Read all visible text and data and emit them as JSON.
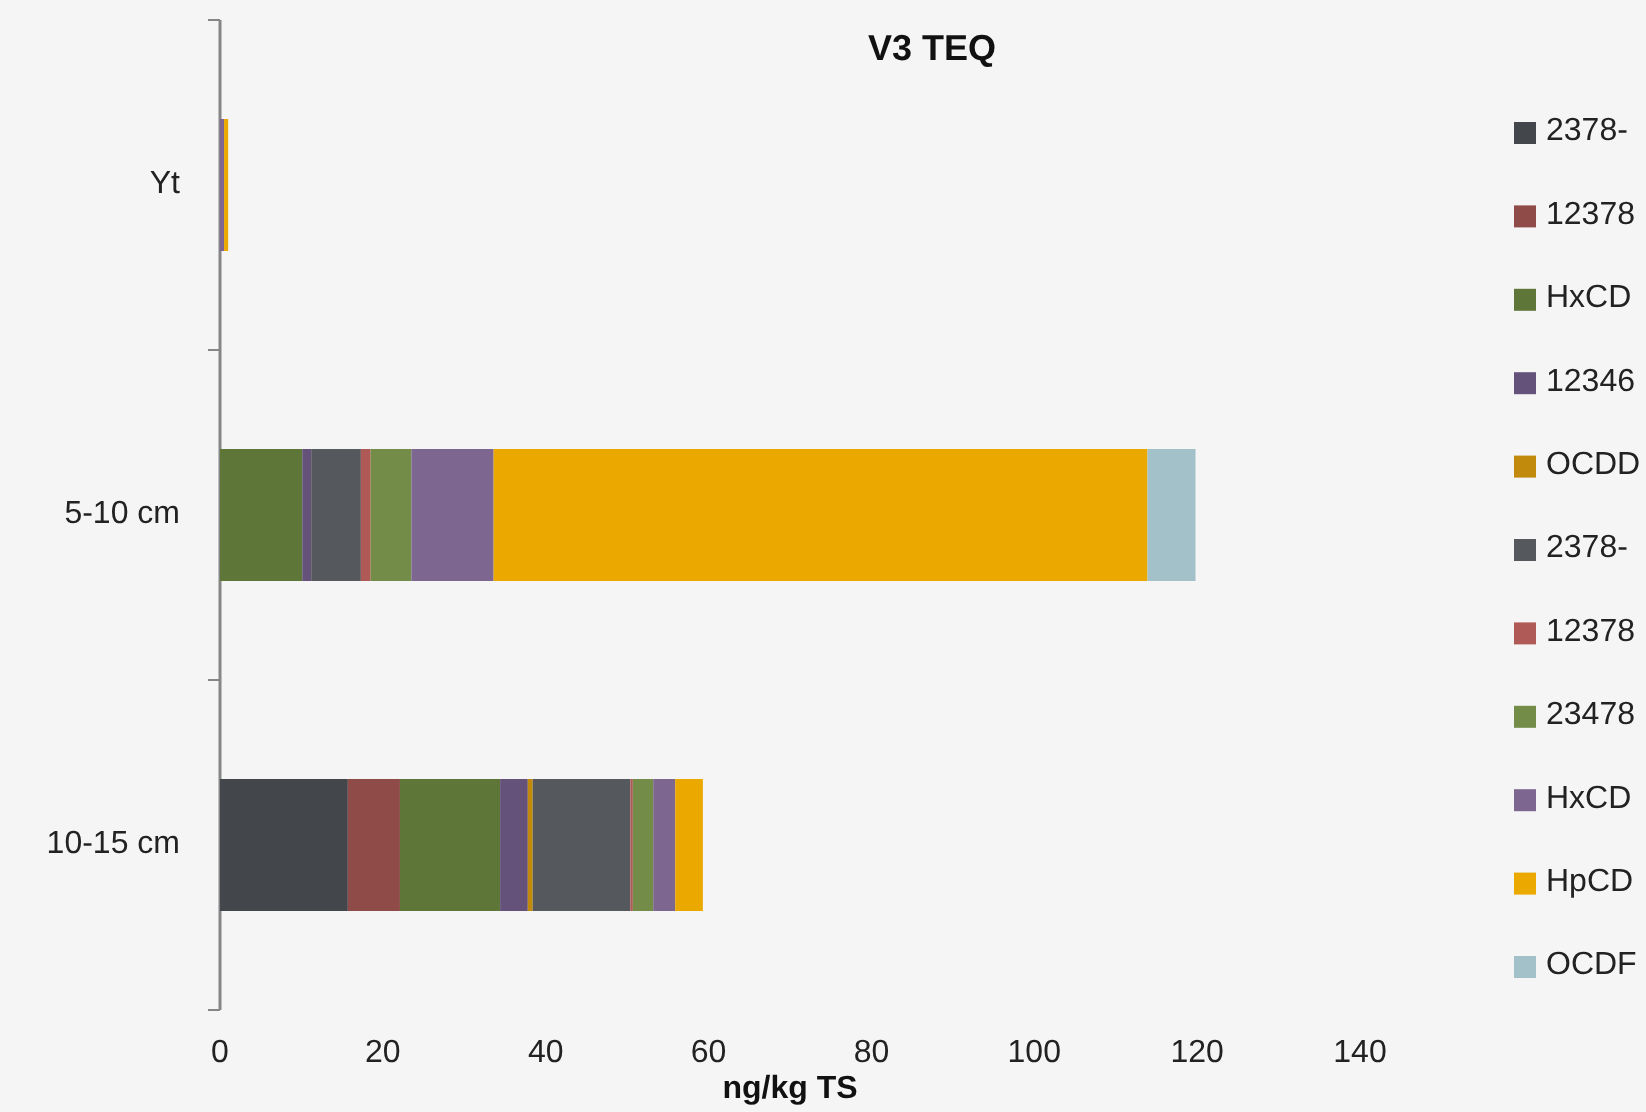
{
  "chart_data": {
    "type": "bar",
    "orientation": "horizontal",
    "stacked": true,
    "title": "V3 TEQ",
    "xlabel": "ng/kg TS",
    "categories": [
      "Yt",
      "5-10 cm",
      "10-15 cm"
    ],
    "series": [
      {
        "name": "2378-",
        "color": "#43464b",
        "values": [
          0,
          0,
          15.7
        ]
      },
      {
        "name": "12378",
        "color": "#8e4b48",
        "values": [
          0,
          0,
          6.4
        ]
      },
      {
        "name": "HxCD",
        "color": "#5f7639",
        "values": [
          0,
          10.1,
          12.3
        ]
      },
      {
        "name": "12346",
        "color": "#65527a",
        "values": [
          0,
          1.1,
          3.4
        ]
      },
      {
        "name": "OCDD",
        "color": "#c18a0c",
        "values": [
          0,
          0,
          0.6
        ]
      },
      {
        "name": "2378-",
        "color": "#55585d",
        "values": [
          0,
          6.1,
          12.0
        ]
      },
      {
        "name": "12378",
        "color": "#b05a57",
        "values": [
          0,
          1.2,
          0.3
        ]
      },
      {
        "name": "23478",
        "color": "#738c47",
        "values": [
          0,
          5.0,
          2.5
        ]
      },
      {
        "name": "HxCD",
        "color": "#7d668f",
        "values": [
          0.5,
          10.1,
          2.7
        ]
      },
      {
        "name": "HpCD",
        "color": "#eba900",
        "values": [
          0.5,
          80.3,
          3.4
        ]
      },
      {
        "name": "OCDF",
        "color": "#a2c1c9",
        "values": [
          0,
          5.9,
          0
        ]
      }
    ],
    "xlim": [
      0,
      140
    ],
    "xticks": [
      0,
      20,
      40,
      60,
      80,
      100,
      120,
      140
    ],
    "grid": false,
    "legend": "right"
  }
}
